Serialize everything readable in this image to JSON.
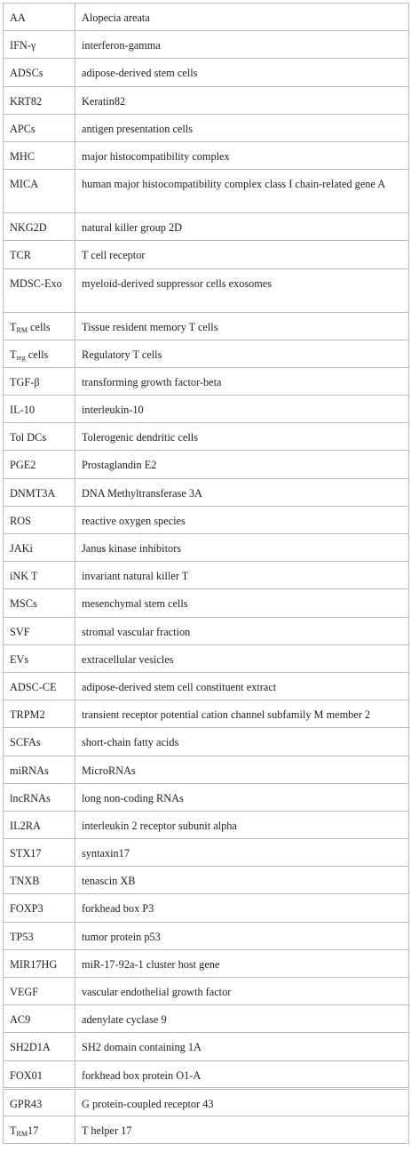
{
  "abbreviations": [
    {
      "abbr": "AA",
      "sub": "",
      "suffix": "",
      "definition": "Alopecia areata"
    },
    {
      "abbr": "IFN-γ",
      "sub": "",
      "suffix": "",
      "definition": "interferon-gamma"
    },
    {
      "abbr": "ADSCs",
      "sub": "",
      "suffix": "",
      "definition": "adipose-derived stem cells"
    },
    {
      "abbr": "KRT82",
      "sub": "",
      "suffix": "",
      "definition": "Keratin82"
    },
    {
      "abbr": "APCs",
      "sub": "",
      "suffix": "",
      "definition": "antigen presentation cells"
    },
    {
      "abbr": "MHC",
      "sub": "",
      "suffix": "",
      "definition": "major histocompatibility complex"
    },
    {
      "abbr": "MICA",
      "sub": "",
      "suffix": "",
      "definition": "human major histocompatibility complex class I chain-related gene A"
    },
    {
      "abbr": "NKG2D",
      "sub": "",
      "suffix": "",
      "definition": "natural killer group 2D"
    },
    {
      "abbr": "TCR",
      "sub": "",
      "suffix": "",
      "definition": "T cell receptor"
    },
    {
      "abbr": "MDSC-Exo",
      "sub": "",
      "suffix": "",
      "definition": "myeloid-derived suppressor cells exosomes"
    },
    {
      "abbr": "T",
      "sub": "RM",
      "suffix": " cells",
      "definition": "Tissue resident memory T cells"
    },
    {
      "abbr": "T",
      "sub": "reg",
      "suffix": " cells",
      "definition": "Regulatory T cells"
    },
    {
      "abbr": "TGF-β",
      "sub": "",
      "suffix": "",
      "definition": "transforming growth factor-beta"
    },
    {
      "abbr": "IL-10",
      "sub": "",
      "suffix": "",
      "definition": "interleukin-10"
    },
    {
      "abbr": "Tol DCs",
      "sub": "",
      "suffix": "",
      "definition": "Tolerogenic dendritic cells"
    },
    {
      "abbr": "PGE2",
      "sub": "",
      "suffix": "",
      "definition": "Prostaglandin E2"
    },
    {
      "abbr": "DNMT3A",
      "sub": "",
      "suffix": "",
      "definition": "DNA Methyltransferase 3A"
    },
    {
      "abbr": "ROS",
      "sub": "",
      "suffix": "",
      "definition": "reactive oxygen species"
    },
    {
      "abbr": "JAKi",
      "sub": "",
      "suffix": "",
      "definition": "Janus kinase inhibitors"
    },
    {
      "abbr": "iNK T",
      "sub": "",
      "suffix": "",
      "definition": "invariant natural killer T"
    },
    {
      "abbr": "MSCs",
      "sub": "",
      "suffix": "",
      "definition": "mesenchymal stem cells"
    },
    {
      "abbr": "SVF",
      "sub": "",
      "suffix": "",
      "definition": "stromal vascular fraction"
    },
    {
      "abbr": "EVs",
      "sub": "",
      "suffix": "",
      "definition": "extracellular vesicles"
    },
    {
      "abbr": "ADSC-CE",
      "sub": "",
      "suffix": "",
      "definition": "adipose-derived stem cell constituent extract"
    },
    {
      "abbr": "TRPM2",
      "sub": "",
      "suffix": "",
      "definition": "transient receptor potential cation channel subfamily M member 2"
    },
    {
      "abbr": "SCFAs",
      "sub": "",
      "suffix": "",
      "definition": "short-chain fatty acids"
    },
    {
      "abbr": "miRNAs",
      "sub": "",
      "suffix": "",
      "definition": "MicroRNAs"
    },
    {
      "abbr": "lncRNAs",
      "sub": "",
      "suffix": "",
      "definition": "long non-coding RNAs"
    },
    {
      "abbr": "IL2RA",
      "sub": "",
      "suffix": "",
      "definition": "interleukin 2 receptor subunit alpha"
    },
    {
      "abbr": "STX17",
      "sub": "",
      "suffix": "",
      "definition": "syntaxin17"
    },
    {
      "abbr": "TNXB",
      "sub": "",
      "suffix": "",
      "definition": "tenascin XB"
    },
    {
      "abbr": "FOXP3",
      "sub": "",
      "suffix": "",
      "definition": "forkhead box P3"
    },
    {
      "abbr": "TP53",
      "sub": "",
      "suffix": "",
      "definition": "tumor protein p53"
    },
    {
      "abbr": "MIR17HG",
      "sub": "",
      "suffix": "",
      "definition": "miR-17-92a-1 cluster host gene"
    },
    {
      "abbr": "VEGF",
      "sub": "",
      "suffix": "",
      "definition": "vascular endothelial growth factor"
    },
    {
      "abbr": "AC9",
      "sub": "",
      "suffix": "",
      "definition": "adenylate cyclase 9"
    },
    {
      "abbr": "SH2D1A",
      "sub": "",
      "suffix": "",
      "definition": "SH2 domain containing 1A"
    },
    {
      "abbr": "FOX01",
      "sub": "",
      "suffix": "",
      "definition": "forkhead box protein O1-A"
    },
    {
      "abbr": "GPR43",
      "sub": "",
      "suffix": "",
      "definition": "G protein-coupled receptor 43"
    },
    {
      "abbr": "T",
      "sub": "RM",
      "suffix": "17",
      "definition": "T helper 17"
    }
  ]
}
